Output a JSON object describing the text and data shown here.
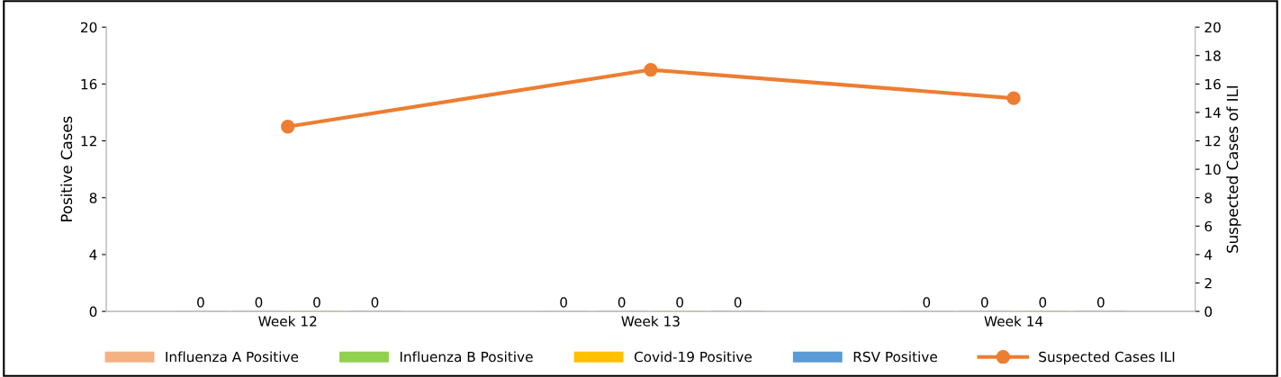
{
  "chart_data": {
    "type": "bar",
    "categories": [
      "Week 12",
      "Week 13",
      "Week 14"
    ],
    "ylabel": "Positive Cases",
    "y2label": "Suspected Cases of ILI",
    "ylim": [
      0,
      20
    ],
    "yticks": [
      0,
      4,
      8,
      12,
      16,
      20
    ],
    "y2lim": [
      0,
      20
    ],
    "y2ticks": [
      0,
      2,
      4,
      6,
      8,
      10,
      12,
      14,
      16,
      18,
      20
    ],
    "legend": "bottom",
    "grid": false,
    "series": [
      {
        "name": "Influenza A Positive",
        "color": "#f4b183",
        "values": [
          0,
          0,
          0
        ],
        "value_labels": [
          "0",
          "0",
          "0"
        ]
      },
      {
        "name": "Influenza B Positive",
        "color": "#92d050",
        "values": [
          0,
          0,
          0
        ],
        "value_labels": [
          "0",
          "0",
          "0"
        ]
      },
      {
        "name": "Covid-19 Positive",
        "color": "#ffc000",
        "values": [
          0,
          0,
          0
        ],
        "value_labels": [
          "0",
          "0",
          "0"
        ]
      },
      {
        "name": "RSV Positive",
        "color": "#5b9bd5",
        "values": [
          0,
          0,
          0
        ],
        "value_labels": [
          "0",
          "0",
          "0"
        ]
      },
      {
        "name": "Suspected Cases ILI",
        "color": "#ed7d31",
        "values": [
          13,
          17,
          15
        ],
        "type": "line",
        "axis": "y2",
        "marker": "circle",
        "line_style": "solid"
      }
    ]
  }
}
